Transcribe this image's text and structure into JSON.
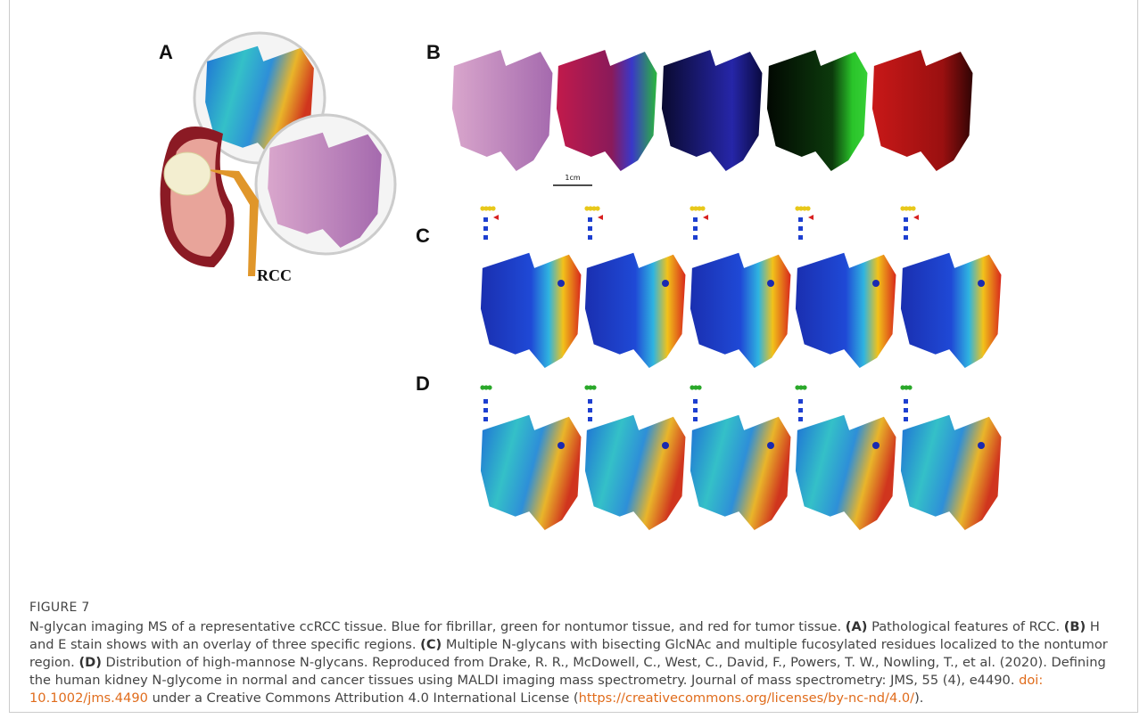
{
  "figure": {
    "panels": {
      "a": "A",
      "b": "B",
      "c": "C",
      "d": "D"
    },
    "kidney_label": "RCC",
    "scale_bar": "1cm"
  },
  "caption": {
    "label": "FIGURE 7",
    "parts": [
      "N-glycan imaging MS of a representative ccRCC tissue. Blue for fibrillar, green for nontumor tissue, and red for tumor tissue.",
      "(A)",
      "Pathological features of RCC.",
      "(B)",
      "H and E stain shows with an overlay of three specific regions.",
      "(C)",
      "Multiple N-glycans with bisecting GlcNAc and multiple fucosylated residues localized to the nontumor region.",
      "(D)",
      "Distribution of high-mannose N-glycans. Reproduced from Drake, R. R., McDowell, C., West, C., David, F., Powers, T. W., Nowling, T., et al. (2020). Defining the human kidney N-glycome in normal and cancer tissues using MALDI imaging mass spectrometry. Journal of mass spectrometry: JMS, 55 (4), e4490.",
      "doi: 10.1002/jms.4490",
      "under a Creative Commons Attribution 4.0 International License (",
      "https://creativecommons.org/licenses/by-nc-nd/4.0/",
      ")."
    ]
  }
}
